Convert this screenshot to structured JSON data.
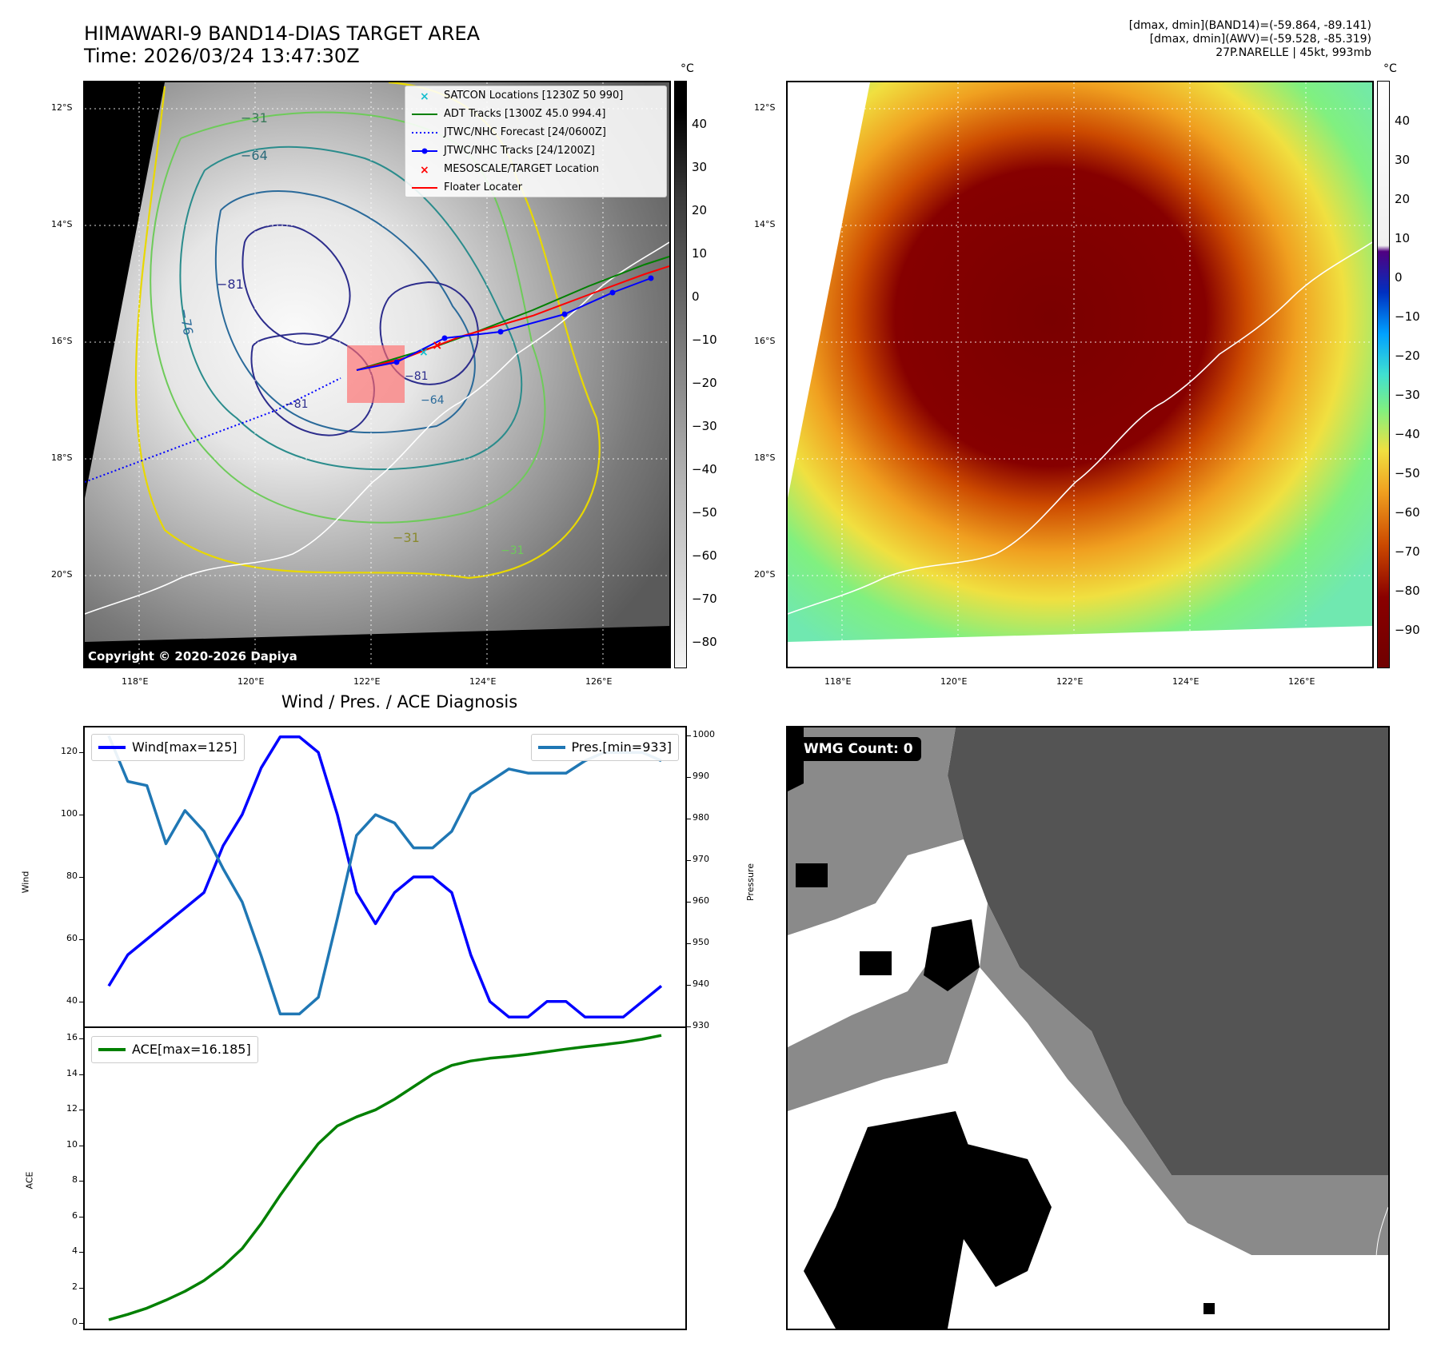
{
  "header": {
    "title_line1": "HIMAWARI-9 BAND14-DIAS TARGET AREA",
    "title_line2": "Time: 2026/03/24 13:47:30Z",
    "right_line1": "[dmax, dmin](BAND14)=(-59.864, -89.141)",
    "right_line2": "[dmax, dmin](AWV)=(-59.528, -85.319)",
    "right_line3": "27P.NARELLE | 45kt, 993mb"
  },
  "map": {
    "lat_labels": [
      "12°S",
      "14°S",
      "16°S",
      "18°S",
      "20°S"
    ],
    "lon_labels": [
      "118°E",
      "120°E",
      "122°E",
      "124°E",
      "126°E"
    ],
    "copyright": "Copyright © 2020-2026 Dapiya",
    "contour_labels": [
      "−31",
      "−64",
      "−81",
      "−76",
      "−81",
      "−31",
      "−31",
      "−64",
      "−81"
    ],
    "legend": [
      {
        "label": "SATCON Locations [1230Z 50 990]",
        "color": "#17becf",
        "icon": "x-marker"
      },
      {
        "label": "ADT Tracks [1300Z 45.0 994.4]",
        "color": "#008000",
        "icon": "solid-line"
      },
      {
        "label": "JTWC/NHC Forecast [24/0600Z]",
        "color": "#0000ff",
        "icon": "dotted-line"
      },
      {
        "label": "JTWC/NHC Tracks [24/1200Z]",
        "color": "#0000ff",
        "icon": "line-dot"
      },
      {
        "label": "MESOSCALE/TARGET Location",
        "color": "#ff0000",
        "icon": "x-marker"
      },
      {
        "label": "Floater Locater",
        "color": "#ff0000",
        "icon": "solid-line"
      }
    ]
  },
  "colorbar_left": {
    "unit": "°C",
    "ticks": [
      "40",
      "30",
      "20",
      "10",
      "0",
      "−10",
      "−20",
      "−30",
      "−40",
      "−50",
      "−60",
      "−70",
      "−80"
    ]
  },
  "colorbar_right": {
    "unit": "°C",
    "ticks": [
      "40",
      "30",
      "20",
      "10",
      "0",
      "−10",
      "−20",
      "−30",
      "−40",
      "−50",
      "−60",
      "−70",
      "−80",
      "−90"
    ]
  },
  "wmg": {
    "badge": "WMG Count: 0"
  },
  "colors": {
    "wind": "#0000ff",
    "pressure": "#1f77b4",
    "ace": "#008000",
    "floater": "#ff0000"
  },
  "chart_data": [
    {
      "type": "line",
      "title": "Wind / Pres. / ACE Diagnosis",
      "xlabel": "",
      "ylabel": "Wind",
      "ylabel_right": "Pressure",
      "ylim": [
        32,
        128
      ],
      "ylim_right": [
        930,
        1002
      ],
      "yticks": [
        40,
        60,
        80,
        100,
        120
      ],
      "yticks_right": [
        930,
        940,
        950,
        960,
        970,
        980,
        990,
        1000
      ],
      "series": [
        {
          "name": "Wind[max=125]",
          "axis": "left",
          "values": [
            45,
            55,
            60,
            65,
            70,
            75,
            90,
            100,
            115,
            125,
            125,
            120,
            100,
            75,
            65,
            75,
            80,
            80,
            75,
            55,
            40,
            35,
            35,
            40,
            40,
            35,
            35,
            35,
            40,
            45
          ]
        },
        {
          "name": "Pres.[min=933]",
          "axis": "right",
          "values": [
            1000,
            989,
            988,
            974,
            982,
            977,
            968,
            960,
            947,
            933,
            933,
            937,
            956,
            976,
            981,
            979,
            973,
            973,
            977,
            986,
            989,
            992,
            991,
            991,
            991,
            994,
            996,
            996,
            996,
            994
          ]
        }
      ]
    },
    {
      "type": "line",
      "xlabel": "",
      "ylabel": "ACE",
      "ylim": [
        -0.3,
        16.6
      ],
      "yticks": [
        0,
        2,
        4,
        6,
        8,
        10,
        12,
        14,
        16
      ],
      "series": [
        {
          "name": "ACE[max=16.185]",
          "values": [
            0.2,
            0.5,
            0.85,
            1.3,
            1.8,
            2.4,
            3.2,
            4.2,
            5.6,
            7.2,
            8.7,
            10.1,
            11.1,
            11.6,
            12.0,
            12.6,
            13.3,
            14.0,
            14.5,
            14.75,
            14.9,
            15.0,
            15.12,
            15.27,
            15.42,
            15.55,
            15.67,
            15.8,
            15.97,
            16.185
          ]
        }
      ]
    }
  ]
}
